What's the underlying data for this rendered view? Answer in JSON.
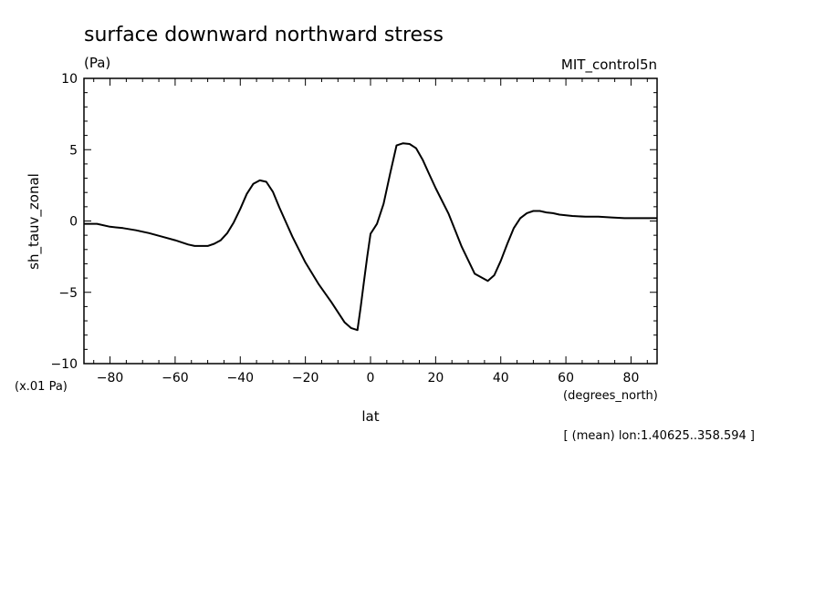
{
  "chart_data": {
    "type": "line",
    "title": "surface downward northward stress",
    "units_label": "(Pa)",
    "dataset_label": "MIT_control5n",
    "ylabel": "sh_tauv_zonal",
    "xlabel": "lat",
    "x_units_label": "(degrees_north)",
    "y_scale_label": "(x.01 Pa)",
    "footnote": "[ (mean) lon:1.40625..358.594 ]",
    "xlim": [
      -88,
      88
    ],
    "ylim": [
      -10,
      10
    ],
    "x_ticks": [
      -80,
      -60,
      -40,
      -20,
      0,
      20,
      40,
      60,
      80
    ],
    "y_ticks": [
      -10,
      -5,
      0,
      5,
      10
    ],
    "grid": false,
    "series": [
      {
        "x": [
          -88,
          -84,
          -80,
          -76,
          -72,
          -68,
          -64,
          -60,
          -56,
          -54,
          -50,
          -48,
          -46,
          -44,
          -42,
          -40,
          -38,
          -36,
          -34,
          -32,
          -30,
          -28,
          -24,
          -20,
          -16,
          -12,
          -8,
          -6,
          -4,
          -3,
          -2,
          -1,
          0,
          2,
          4,
          6,
          8,
          10,
          12,
          14,
          16,
          18,
          20,
          24,
          28,
          32,
          36,
          38,
          40,
          42,
          44,
          46,
          48,
          50,
          52,
          54,
          56,
          58,
          62,
          66,
          70,
          74,
          78,
          82,
          86,
          88
        ],
        "y": [
          -0.2,
          -0.2,
          -0.4,
          -0.5,
          -0.65,
          -0.85,
          -1.1,
          -1.35,
          -1.65,
          -1.75,
          -1.75,
          -1.6,
          -1.35,
          -0.85,
          -0.1,
          0.85,
          1.9,
          2.6,
          2.85,
          2.75,
          2.05,
          0.95,
          -1.1,
          -2.9,
          -4.4,
          -5.7,
          -7.1,
          -7.5,
          -7.65,
          -6.0,
          -4.2,
          -2.5,
          -0.9,
          -0.2,
          1.2,
          3.3,
          5.3,
          5.45,
          5.4,
          5.1,
          4.3,
          3.3,
          2.3,
          0.5,
          -1.8,
          -3.7,
          -4.2,
          -3.8,
          -2.8,
          -1.6,
          -0.5,
          0.2,
          0.55,
          0.7,
          0.7,
          0.6,
          0.55,
          0.45,
          0.35,
          0.3,
          0.3,
          0.25,
          0.2,
          0.2,
          0.2,
          0.2
        ]
      }
    ]
  }
}
